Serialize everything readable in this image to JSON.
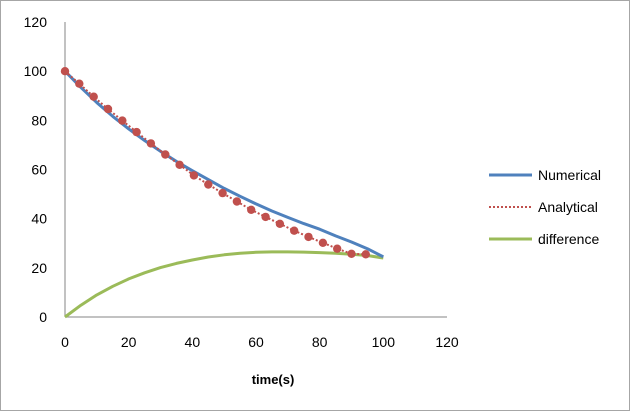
{
  "chart_data": {
    "type": "line",
    "title": "",
    "xlabel": "time(s)",
    "ylabel": "",
    "xlim": [
      0,
      120
    ],
    "ylim": [
      0,
      120
    ],
    "x_ticks": [
      0,
      20,
      40,
      60,
      80,
      100,
      120
    ],
    "y_ticks": [
      0,
      20,
      40,
      60,
      80,
      100,
      120
    ],
    "grid": false,
    "legend_position": "right",
    "series": [
      {
        "name": "Numerical",
        "style": "solid line",
        "color": "#4f81bd",
        "x": [
          0,
          5,
          10,
          15,
          20,
          25,
          30,
          35,
          40,
          45,
          50,
          55,
          60,
          65,
          70,
          75,
          80,
          85,
          90,
          95,
          100
        ],
        "y": [
          100,
          93.4,
          87.2,
          81.6,
          76.5,
          71.8,
          67.4,
          63.3,
          59.5,
          55.9,
          52.3,
          49.1,
          46.0,
          43.1,
          40.5,
          38.0,
          35.7,
          33.0,
          30.5,
          27.8,
          24.5
        ]
      },
      {
        "name": "Analytical",
        "style": "dotted line with round markers",
        "color": "#c0504d",
        "x": [
          0,
          4.5,
          9,
          13.5,
          18,
          22.5,
          27,
          31.5,
          36,
          40.5,
          45,
          49.5,
          54,
          58.5,
          63,
          67.5,
          72,
          76.5,
          81,
          85.5,
          90,
          94.5
        ],
        "y": [
          100,
          94.9,
          89.6,
          84.6,
          79.9,
          75.2,
          70.6,
          66.1,
          61.9,
          57.6,
          53.9,
          50.4,
          47.0,
          43.6,
          40.7,
          37.9,
          35.1,
          32.6,
          30.2,
          27.8,
          25.7,
          25.5
        ]
      },
      {
        "name": "difference",
        "style": "solid line",
        "color": "#9bbb59",
        "x": [
          0,
          5,
          10,
          15,
          20,
          25,
          30,
          35,
          40,
          45,
          50,
          55,
          60,
          65,
          70,
          75,
          80,
          85,
          90,
          95,
          100
        ],
        "y": [
          0,
          4.8,
          9.0,
          12.5,
          15.5,
          18.0,
          20.1,
          21.8,
          23.2,
          24.4,
          25.3,
          25.9,
          26.3,
          26.5,
          26.5,
          26.4,
          26.2,
          25.9,
          25.5,
          25.0,
          24.0
        ]
      }
    ]
  }
}
